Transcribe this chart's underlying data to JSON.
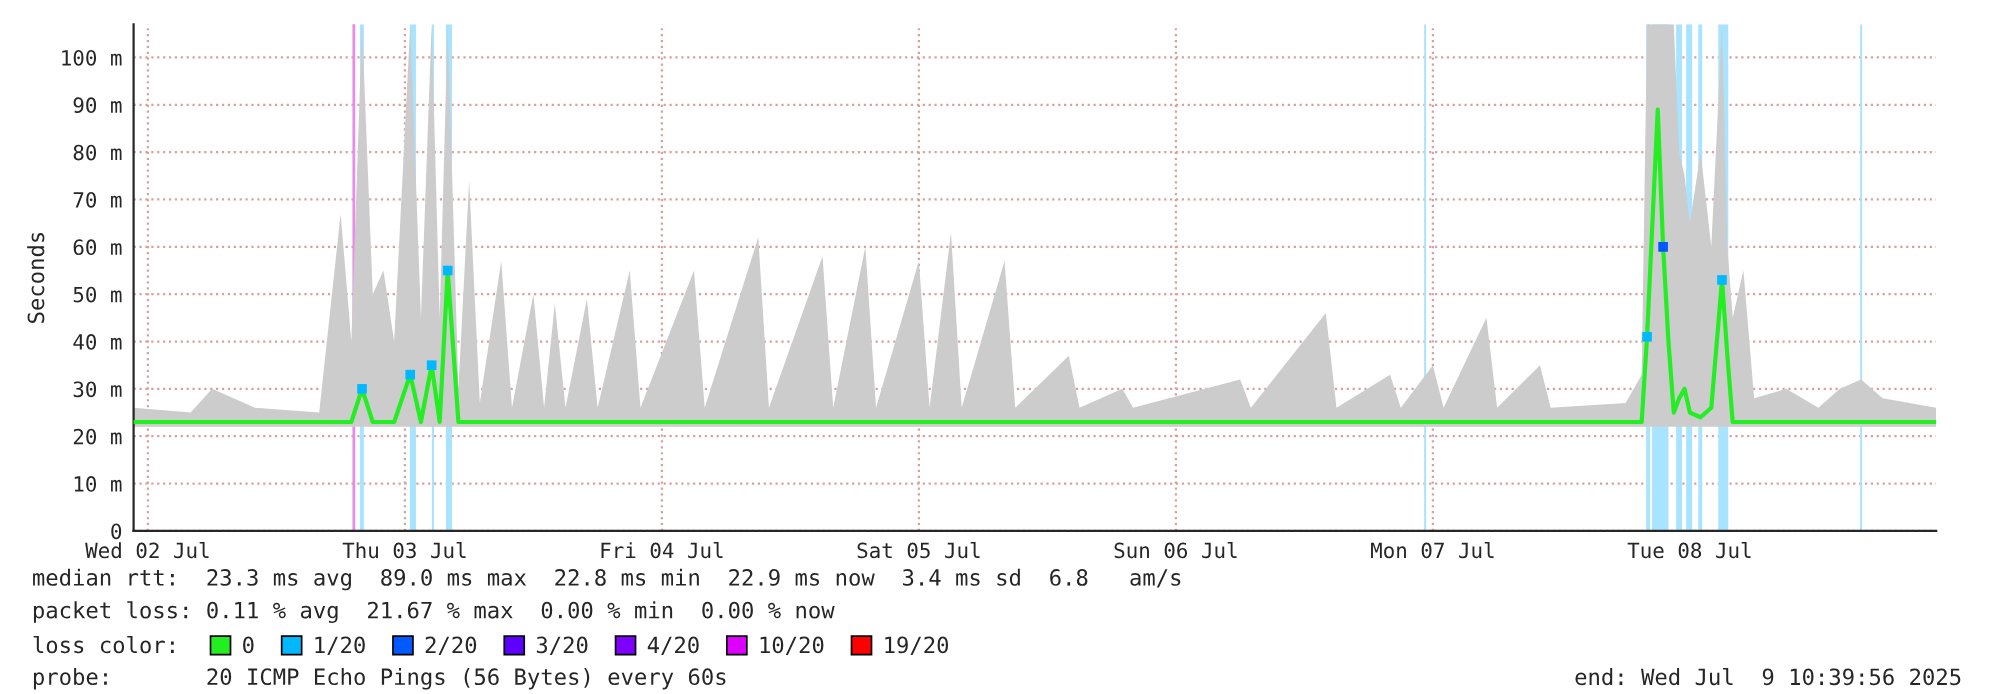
{
  "chart_data": {
    "type": "line",
    "ylabel": "Seconds",
    "xlim": [
      "2025-07-01T22:40",
      "2025-07-08T23:00"
    ],
    "xticks": [
      {
        "value": "2025-07-02",
        "label": "Wed 02 Jul"
      },
      {
        "value": "2025-07-03",
        "label": "Thu 03 Jul"
      },
      {
        "value": "2025-07-04",
        "label": "Fri 04 Jul"
      },
      {
        "value": "2025-07-05",
        "label": "Sat 05 Jul"
      },
      {
        "value": "2025-07-06",
        "label": "Sun 06 Jul"
      },
      {
        "value": "2025-07-07",
        "label": "Mon 07 Jul"
      },
      {
        "value": "2025-07-08",
        "label": "Tue 08 Jul"
      }
    ],
    "ylim": [
      0,
      107
    ],
    "yticks": [
      0,
      {
        "value": 10,
        "label": "10 m"
      },
      {
        "value": 20,
        "label": "20 m"
      },
      {
        "value": 30,
        "label": "30 m"
      },
      {
        "value": 40,
        "label": "40 m"
      },
      {
        "value": 50,
        "label": "50 m"
      },
      {
        "value": 60,
        "label": "60 m"
      },
      {
        "value": 70,
        "label": "70 m"
      },
      {
        "value": 80,
        "label": "80 m"
      },
      {
        "value": 90,
        "label": "90 m"
      },
      {
        "value": 100,
        "label": "100 m"
      }
    ],
    "grid": true,
    "legend": "bottom left",
    "legend_title": "loss color:",
    "marker": "none",
    "line_style": "solid",
    "x": [
      "2025-07-01T22:40",
      "2025-07-02T04:00",
      "2025-07-02T06:00",
      "2025-07-02T10:00",
      "2025-07-02T16:00",
      "2025-07-02T18:00",
      "2025-07-02T19:00",
      "2025-07-02T20:00",
      "2025-07-02T21:00",
      "2025-07-02T22:00",
      "2025-07-02T23:00",
      "2025-07-03T00:30",
      "2025-07-03T01:30",
      "2025-07-03T02:30",
      "2025-07-03T03:15",
      "2025-07-03T04:00",
      "2025-07-03T05:00",
      "2025-07-03T06:00",
      "2025-07-03T07:00",
      "2025-07-03T09:00",
      "2025-07-03T10:00",
      "2025-07-03T12:00",
      "2025-07-03T13:00",
      "2025-07-03T14:00",
      "2025-07-03T15:00",
      "2025-07-03T17:00",
      "2025-07-03T18:00",
      "2025-07-03T21:00",
      "2025-07-03T22:00",
      "2025-07-04T03:00",
      "2025-07-04T04:00",
      "2025-07-04T09:00",
      "2025-07-04T10:00",
      "2025-07-04T15:00",
      "2025-07-04T16:00",
      "2025-07-04T19:00",
      "2025-07-04T20:00",
      "2025-07-05T00:00",
      "2025-07-05T01:00",
      "2025-07-05T03:00",
      "2025-07-05T04:00",
      "2025-07-05T08:00",
      "2025-07-05T09:00",
      "2025-07-05T14:00",
      "2025-07-05T15:00",
      "2025-07-05T19:00",
      "2025-07-05T20:00",
      "2025-07-06T06:00",
      "2025-07-06T07:00",
      "2025-07-06T14:00",
      "2025-07-06T15:00",
      "2025-07-06T20:00",
      "2025-07-06T21:00",
      "2025-07-07T00:00",
      "2025-07-07T01:00",
      "2025-07-07T05:00",
      "2025-07-07T06:00",
      "2025-07-07T10:00",
      "2025-07-07T11:00",
      "2025-07-07T18:00",
      "2025-07-07T19:30",
      "2025-07-07T20:00",
      "2025-07-07T21:00",
      "2025-07-07T21:30",
      "2025-07-07T22:00",
      "2025-07-07T22:30",
      "2025-07-07T23:00",
      "2025-07-07T23:30",
      "2025-07-08T00:00",
      "2025-07-08T01:00",
      "2025-07-08T02:00",
      "2025-07-08T03:00",
      "2025-07-08T03:30",
      "2025-07-08T04:00",
      "2025-07-08T05:00",
      "2025-07-08T06:00",
      "2025-07-08T09:00",
      "2025-07-08T12:00",
      "2025-07-08T14:00",
      "2025-07-08T16:00",
      "2025-07-08T18:00",
      "2025-07-08T23:00"
    ],
    "series": [
      {
        "name": "0",
        "color": "#22ee22",
        "values": [
          23,
          23,
          23,
          23,
          23,
          23,
          23,
          30,
          23,
          23,
          23,
          33,
          23,
          35,
          23,
          55,
          23,
          23,
          23,
          23,
          23,
          23,
          23,
          23,
          23,
          23,
          23,
          23,
          23,
          23,
          23,
          23,
          23,
          23,
          23,
          23,
          23,
          23,
          23,
          23,
          23,
          23,
          23,
          23,
          23,
          23,
          23,
          23,
          23,
          23,
          23,
          23,
          23,
          23,
          23,
          23,
          23,
          23,
          23,
          23,
          23,
          41,
          89,
          60,
          40,
          25,
          28,
          30,
          25,
          24,
          26,
          53,
          37,
          23,
          23,
          23,
          23,
          23,
          23,
          23,
          23,
          23
        ],
        "lower": [
          22,
          22,
          22,
          22,
          22,
          22,
          22,
          22,
          22,
          22,
          22,
          22,
          22,
          22,
          22,
          22,
          22,
          22,
          22,
          22,
          22,
          22,
          22,
          22,
          22,
          22,
          22,
          22,
          22,
          22,
          22,
          22,
          22,
          22,
          22,
          22,
          22,
          22,
          22,
          22,
          22,
          22,
          22,
          22,
          22,
          22,
          22,
          22,
          22,
          22,
          22,
          22,
          22,
          22,
          22,
          22,
          22,
          22,
          22,
          22,
          22,
          22,
          22,
          22,
          22,
          22,
          22,
          22,
          22,
          22,
          22,
          22,
          22,
          22,
          22,
          22,
          22,
          22,
          22,
          22,
          22,
          22
        ],
        "upper": [
          26,
          25,
          30,
          26,
          25,
          67,
          40,
          107,
          50,
          55,
          40,
          107,
          45,
          107,
          45,
          107,
          30,
          74,
          27,
          57,
          26,
          50,
          26,
          48,
          26,
          49,
          26,
          55,
          26,
          55,
          26,
          62,
          26,
          58,
          26,
          60,
          26,
          57,
          26,
          63,
          26,
          57,
          26,
          37,
          26,
          30,
          26,
          32,
          26,
          46,
          26,
          33,
          26,
          35,
          26,
          45,
          26,
          35,
          26,
          27,
          33,
          107,
          107,
          107,
          107,
          107,
          80,
          75,
          65,
          80,
          60,
          107,
          60,
          45,
          55,
          28,
          30,
          26,
          30,
          32,
          28,
          26
        ]
      },
      {
        "name": "1/20",
        "color": "#00b8ff",
        "type": "scatter",
        "marker": "square",
        "values": [
          null,
          null,
          null,
          null,
          null,
          null,
          null,
          30,
          null,
          null,
          null,
          33,
          null,
          35,
          null,
          55,
          null,
          null,
          null,
          null,
          null,
          null,
          null,
          null,
          null,
          null,
          null,
          null,
          null,
          null,
          null,
          null,
          null,
          null,
          null,
          null,
          null,
          null,
          null,
          null,
          null,
          null,
          null,
          null,
          null,
          null,
          null,
          null,
          null,
          null,
          null,
          null,
          null,
          null,
          null,
          null,
          null,
          null,
          null,
          null,
          null,
          41,
          null,
          null,
          null,
          null,
          null,
          null,
          null,
          null,
          null,
          53,
          null,
          null,
          null,
          null,
          null,
          null,
          null,
          null,
          null,
          null
        ]
      },
      {
        "name": "2/20",
        "color": "#0059ff",
        "type": "scatter",
        "marker": "square",
        "values": [
          null,
          null,
          null,
          null,
          null,
          null,
          null,
          null,
          null,
          null,
          null,
          null,
          null,
          null,
          null,
          null,
          null,
          null,
          null,
          null,
          null,
          null,
          null,
          null,
          null,
          null,
          null,
          null,
          null,
          null,
          null,
          null,
          null,
          null,
          null,
          null,
          null,
          null,
          null,
          null,
          null,
          null,
          null,
          null,
          null,
          null,
          null,
          null,
          null,
          null,
          null,
          null,
          null,
          null,
          null,
          null,
          null,
          null,
          null,
          null,
          null,
          null,
          null,
          60,
          null,
          null,
          null,
          null,
          null,
          null,
          null,
          null,
          null,
          null,
          null,
          null,
          null,
          null,
          null,
          null,
          null,
          null
        ]
      },
      {
        "name": "3/20",
        "color": "#5e00ff",
        "type": "scatter",
        "values": [
          null,
          null,
          null,
          null,
          null,
          null,
          null,
          null,
          null,
          null,
          null,
          null,
          null,
          null,
          null,
          null,
          null,
          null,
          null,
          null,
          null,
          null,
          null,
          null,
          null,
          null,
          null,
          null,
          null,
          null,
          null,
          null,
          null,
          null,
          null,
          null,
          null,
          null,
          null,
          null,
          null,
          null,
          null,
          null,
          null,
          null,
          null,
          null,
          null,
          null,
          null,
          null,
          null,
          null,
          null,
          null,
          null,
          null,
          null,
          null,
          null,
          null,
          null,
          null,
          null,
          null,
          null,
          null,
          null,
          null,
          null,
          null,
          null,
          null,
          null,
          null,
          null,
          null,
          null,
          null,
          null,
          null
        ]
      },
      {
        "name": "4/20",
        "color": "#7e00ff",
        "type": "scatter",
        "values": [
          null,
          null,
          null,
          null,
          null,
          null,
          null,
          null,
          null,
          null,
          null,
          null,
          null,
          null,
          null,
          null,
          null,
          null,
          null,
          null,
          null,
          null,
          null,
          null,
          null,
          null,
          null,
          null,
          null,
          null,
          null,
          null,
          null,
          null,
          null,
          null,
          null,
          null,
          null,
          null,
          null,
          null,
          null,
          null,
          null,
          null,
          null,
          null,
          null,
          null,
          null,
          null,
          null,
          null,
          null,
          null,
          null,
          null,
          null,
          null,
          null,
          null,
          null,
          null,
          null,
          null,
          null,
          null,
          null,
          null,
          null,
          null,
          null,
          null,
          null,
          null,
          null,
          null,
          null,
          null,
          null,
          null
        ]
      },
      {
        "name": "10/20",
        "color": "#dd00ff",
        "type": "scatter",
        "values": [
          null,
          null,
          null,
          null,
          null,
          null,
          null,
          null,
          null,
          null,
          null,
          null,
          null,
          null,
          null,
          null,
          null,
          null,
          null,
          null,
          null,
          null,
          null,
          null,
          null,
          null,
          null,
          null,
          null,
          null,
          null,
          null,
          null,
          null,
          null,
          null,
          null,
          null,
          null,
          null,
          null,
          null,
          null,
          null,
          null,
          null,
          null,
          null,
          null,
          null,
          null,
          null,
          null,
          null,
          null,
          null,
          null,
          null,
          null,
          null,
          null,
          null,
          null,
          null,
          null,
          null,
          null,
          null,
          null,
          null,
          null,
          null,
          null,
          null,
          null,
          null,
          null,
          null,
          null,
          null,
          null,
          null
        ]
      },
      {
        "name": "19/20",
        "color": "#ff0000",
        "type": "scatter",
        "values": [
          null,
          null,
          null,
          null,
          null,
          null,
          null,
          null,
          null,
          null,
          null,
          null,
          null,
          null,
          null,
          null,
          null,
          null,
          null,
          null,
          null,
          null,
          null,
          null,
          null,
          null,
          null,
          null,
          null,
          null,
          null,
          null,
          null,
          null,
          null,
          null,
          null,
          null,
          null,
          null,
          null,
          null,
          null,
          null,
          null,
          null,
          null,
          null,
          null,
          null,
          null,
          null,
          null,
          null,
          null,
          null,
          null,
          null,
          null,
          null,
          null,
          null,
          null,
          null,
          null,
          null,
          null,
          null,
          null,
          null,
          null,
          null,
          null,
          null,
          null,
          null,
          null,
          null,
          null,
          null,
          null,
          null
        ]
      }
    ],
    "bands": [
      {
        "axis": "x",
        "from": "2025-07-02T19:48",
        "to": "2025-07-02T20:10",
        "color": "#a8e4ff"
      },
      {
        "axis": "x",
        "from": "2025-07-03T00:28",
        "to": "2025-07-03T01:02",
        "color": "#a8e4ff"
      },
      {
        "axis": "x",
        "from": "2025-07-03T02:31",
        "to": "2025-07-03T02:43",
        "color": "#a8e4ff"
      },
      {
        "axis": "x",
        "from": "2025-07-03T03:50",
        "to": "2025-07-03T04:24",
        "color": "#a8e4ff"
      },
      {
        "axis": "x",
        "from": "2025-07-06T23:11",
        "to": "2025-07-06T23:22",
        "color": "#a8e4ff"
      },
      {
        "axis": "x",
        "from": "2025-07-07T19:55",
        "to": "2025-07-07T20:17",
        "color": "#a8e4ff"
      },
      {
        "axis": "x",
        "from": "2025-07-07T20:28",
        "to": "2025-07-07T22:00",
        "color": "#a8e4ff"
      },
      {
        "axis": "x",
        "from": "2025-07-07T22:43",
        "to": "2025-07-07T23:16",
        "color": "#a8e4ff"
      },
      {
        "axis": "x",
        "from": "2025-07-07T23:39",
        "to": "2025-07-08T00:13",
        "color": "#a8e4ff"
      },
      {
        "axis": "x",
        "from": "2025-07-08T00:47",
        "to": "2025-07-08T01:09",
        "color": "#a8e4ff"
      },
      {
        "axis": "x",
        "from": "2025-07-08T02:39",
        "to": "2025-07-08T03:35",
        "color": "#a8e4ff"
      },
      {
        "axis": "x",
        "from": "2025-07-08T15:54",
        "to": "2025-07-08T16:05",
        "color": "#a8e4ff"
      }
    ],
    "ref_lines": [
      {
        "axis": "x",
        "value": "2025-07-02T19:14",
        "color": "#e88ce8"
      }
    ],
    "annotations": [
      "median rtt:  23.3 ms avg  89.0 ms max  22.8 ms min  22.9 ms now  3.4 ms sd  6.8   am/s",
      "packet loss: 0.11 % avg  21.67 % max  0.00 % min  0.00 % now",
      "probe:       20 ICMP Echo Pings (56 Bytes) every 60s",
      "end: Wed Jul  9 10:39:56 2025"
    ]
  }
}
